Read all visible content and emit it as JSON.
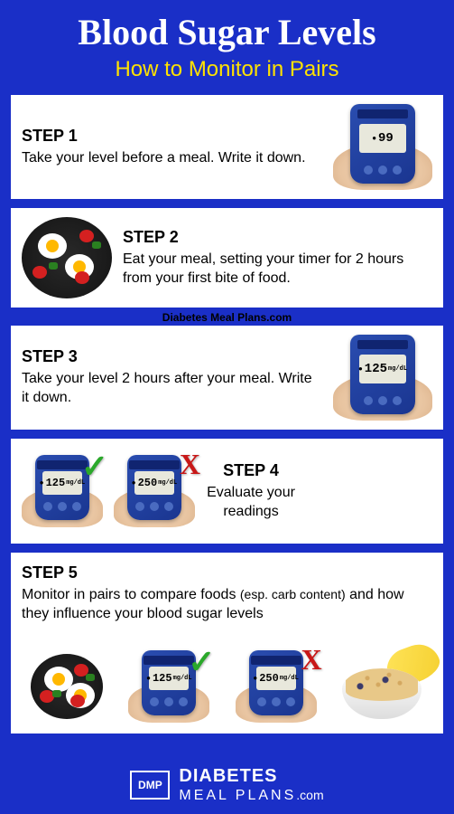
{
  "title": "Blood Sugar Levels",
  "subtitle": "How to Monitor in Pairs",
  "watermark": "Diabetes Meal Plans.com",
  "colors": {
    "background": "#1a2fc7",
    "title": "#ffffff",
    "subtitle": "#ffe200",
    "step_bg": "#ffffff",
    "text": "#000000",
    "check": "#2aa82a",
    "cross": "#c81818",
    "meter_body": "#2a4db0",
    "meter_screen": "#e8e8dc"
  },
  "steps": [
    {
      "label": "STEP 1",
      "desc": "Take your level before a meal. Write it down.",
      "meter_value": "99",
      "image_side": "right",
      "image_type": "meter"
    },
    {
      "label": "STEP 2",
      "desc": "Eat your meal, setting your timer for 2 hours from your first bite of food.",
      "image_side": "left",
      "image_type": "food"
    },
    {
      "label": "STEP 3",
      "desc": "Take your level 2 hours after your meal. Write it down.",
      "meter_value": "125",
      "image_side": "right",
      "image_type": "meter"
    },
    {
      "label": "STEP 4",
      "desc": "Evaluate your readings",
      "meters": [
        {
          "value": "125",
          "mark": "check"
        },
        {
          "value": "250",
          "mark": "cross"
        }
      ]
    },
    {
      "label": "STEP 5",
      "desc_pre": "Monitor in pairs to compare foods ",
      "desc_small": "(esp. carb content)",
      "desc_post": " and how they influence your blood sugar levels",
      "row": [
        {
          "type": "food"
        },
        {
          "type": "meter",
          "value": "125",
          "mark": "check"
        },
        {
          "type": "meter",
          "value": "250",
          "mark": "cross"
        },
        {
          "type": "cereal"
        }
      ]
    }
  ],
  "footer": {
    "logo": "DMP",
    "brand1": "DIABETES",
    "brand2": "MEAL PLANS",
    "com": ".com"
  }
}
